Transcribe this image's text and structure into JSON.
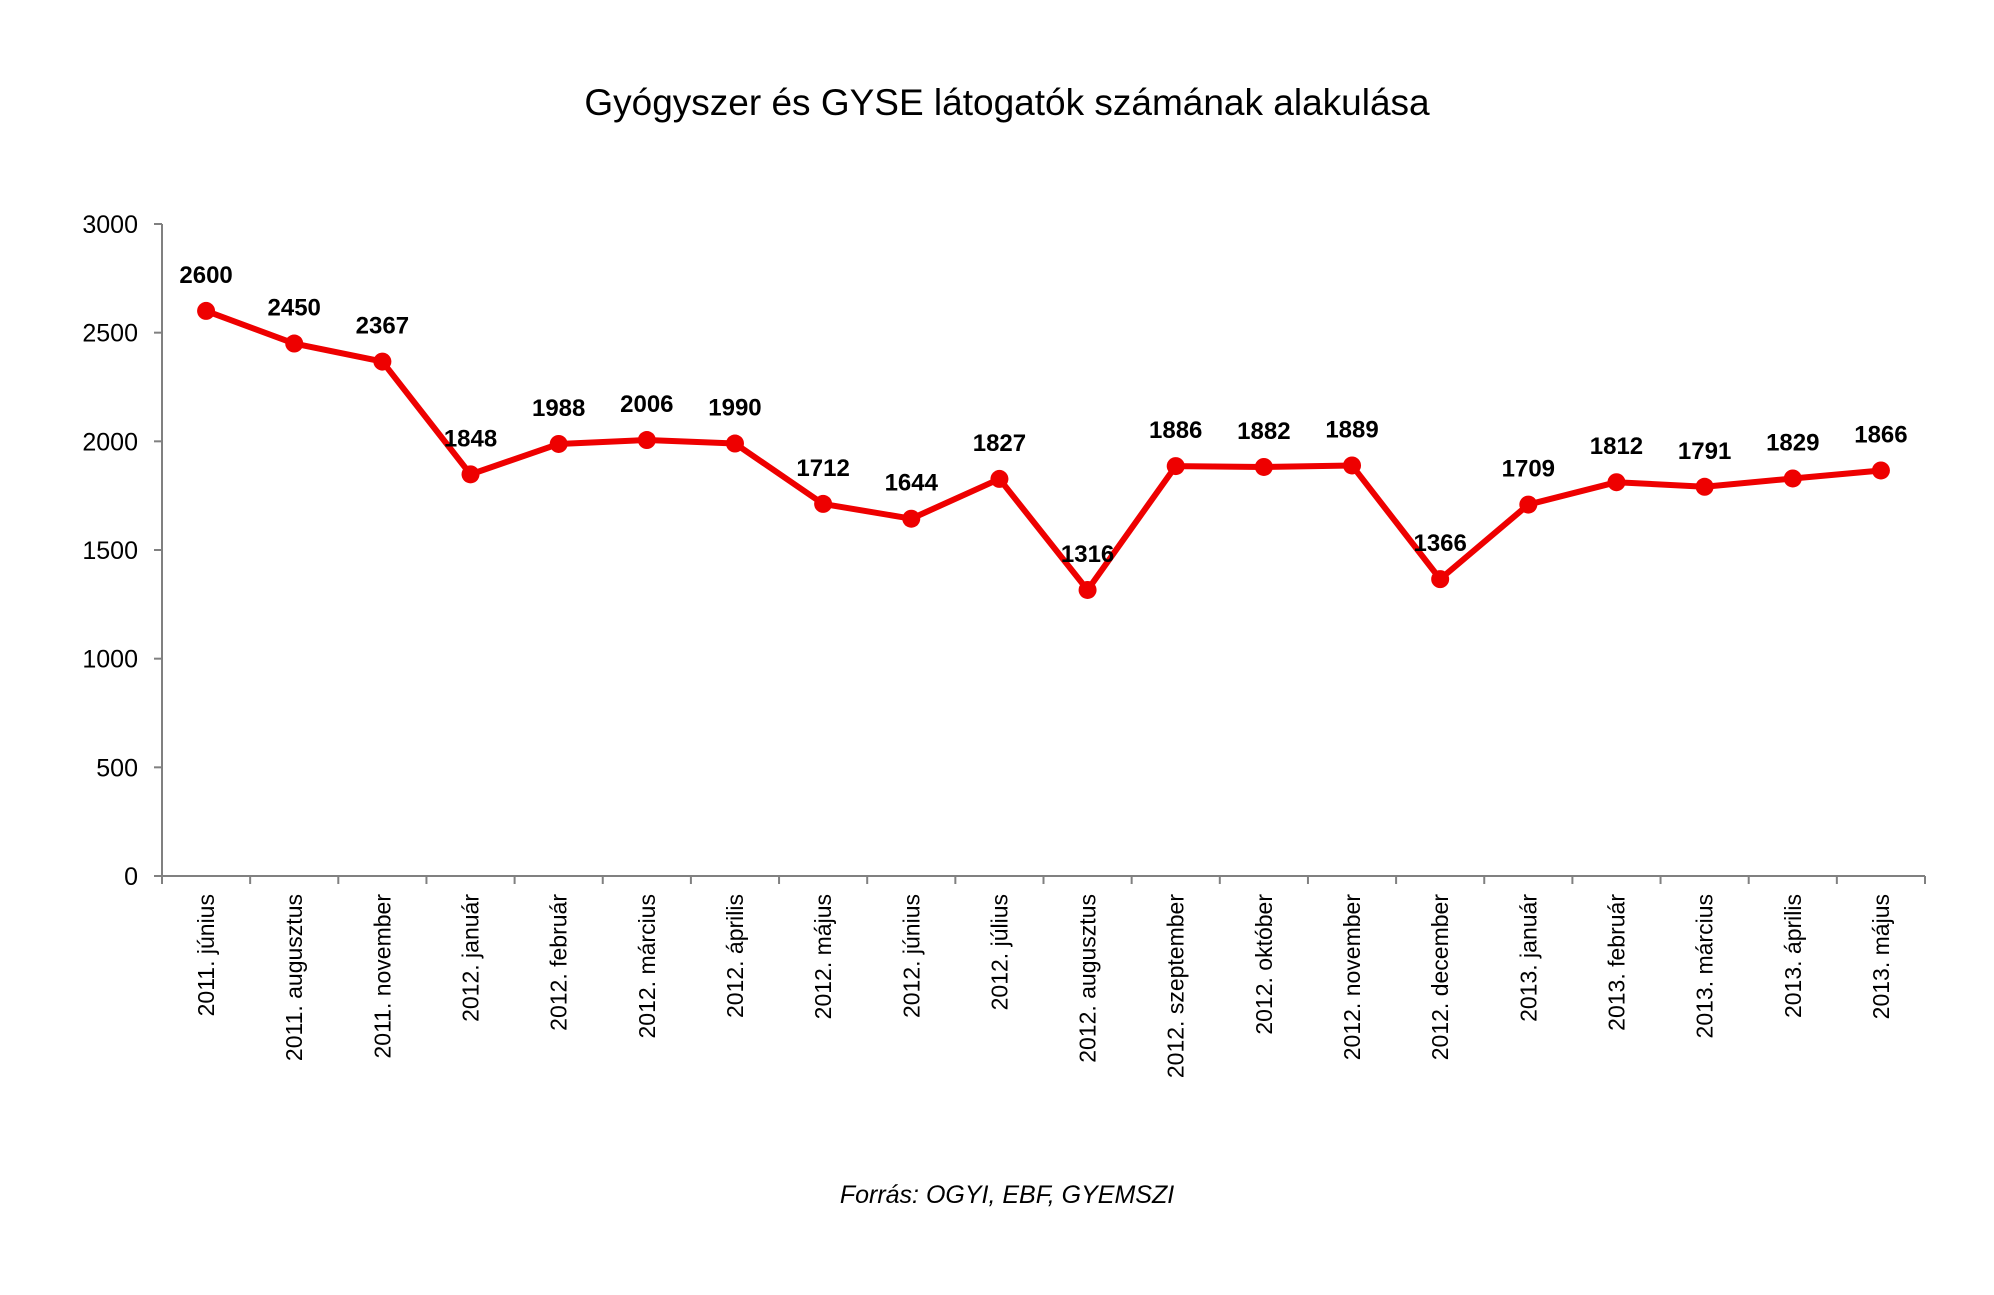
{
  "chart_data": {
    "type": "line",
    "title": "Gyógyszer és GYSE látogatók számának alakulása",
    "xlabel": "",
    "ylabel": "",
    "ylim": [
      0,
      3000
    ],
    "yticks": [
      0,
      500,
      1000,
      1500,
      2000,
      2500,
      3000
    ],
    "grid": false,
    "legend": "none",
    "categories": [
      "2011. június",
      "2011. augusztus",
      "2011. november",
      "2012. január",
      "2012. február",
      "2012. március",
      "2012. április",
      "2012. május",
      "2012. június",
      "2012. július",
      "2012. augusztus",
      "2012. szeptember",
      "2012. október",
      "2012. november",
      "2012. december",
      "2013. január",
      "2013. február",
      "2013. március",
      "2013. április",
      "2013. május"
    ],
    "series": [
      {
        "values": [
          2600,
          2450,
          2367,
          1848,
          1988,
          2006,
          1990,
          1712,
          1644,
          1827,
          1316,
          1886,
          1882,
          1889,
          1366,
          1709,
          1812,
          1791,
          1829,
          1866
        ],
        "color": "#ee0000"
      }
    ],
    "source": "Forrás: OGYI, EBF, GYEMSZI"
  }
}
